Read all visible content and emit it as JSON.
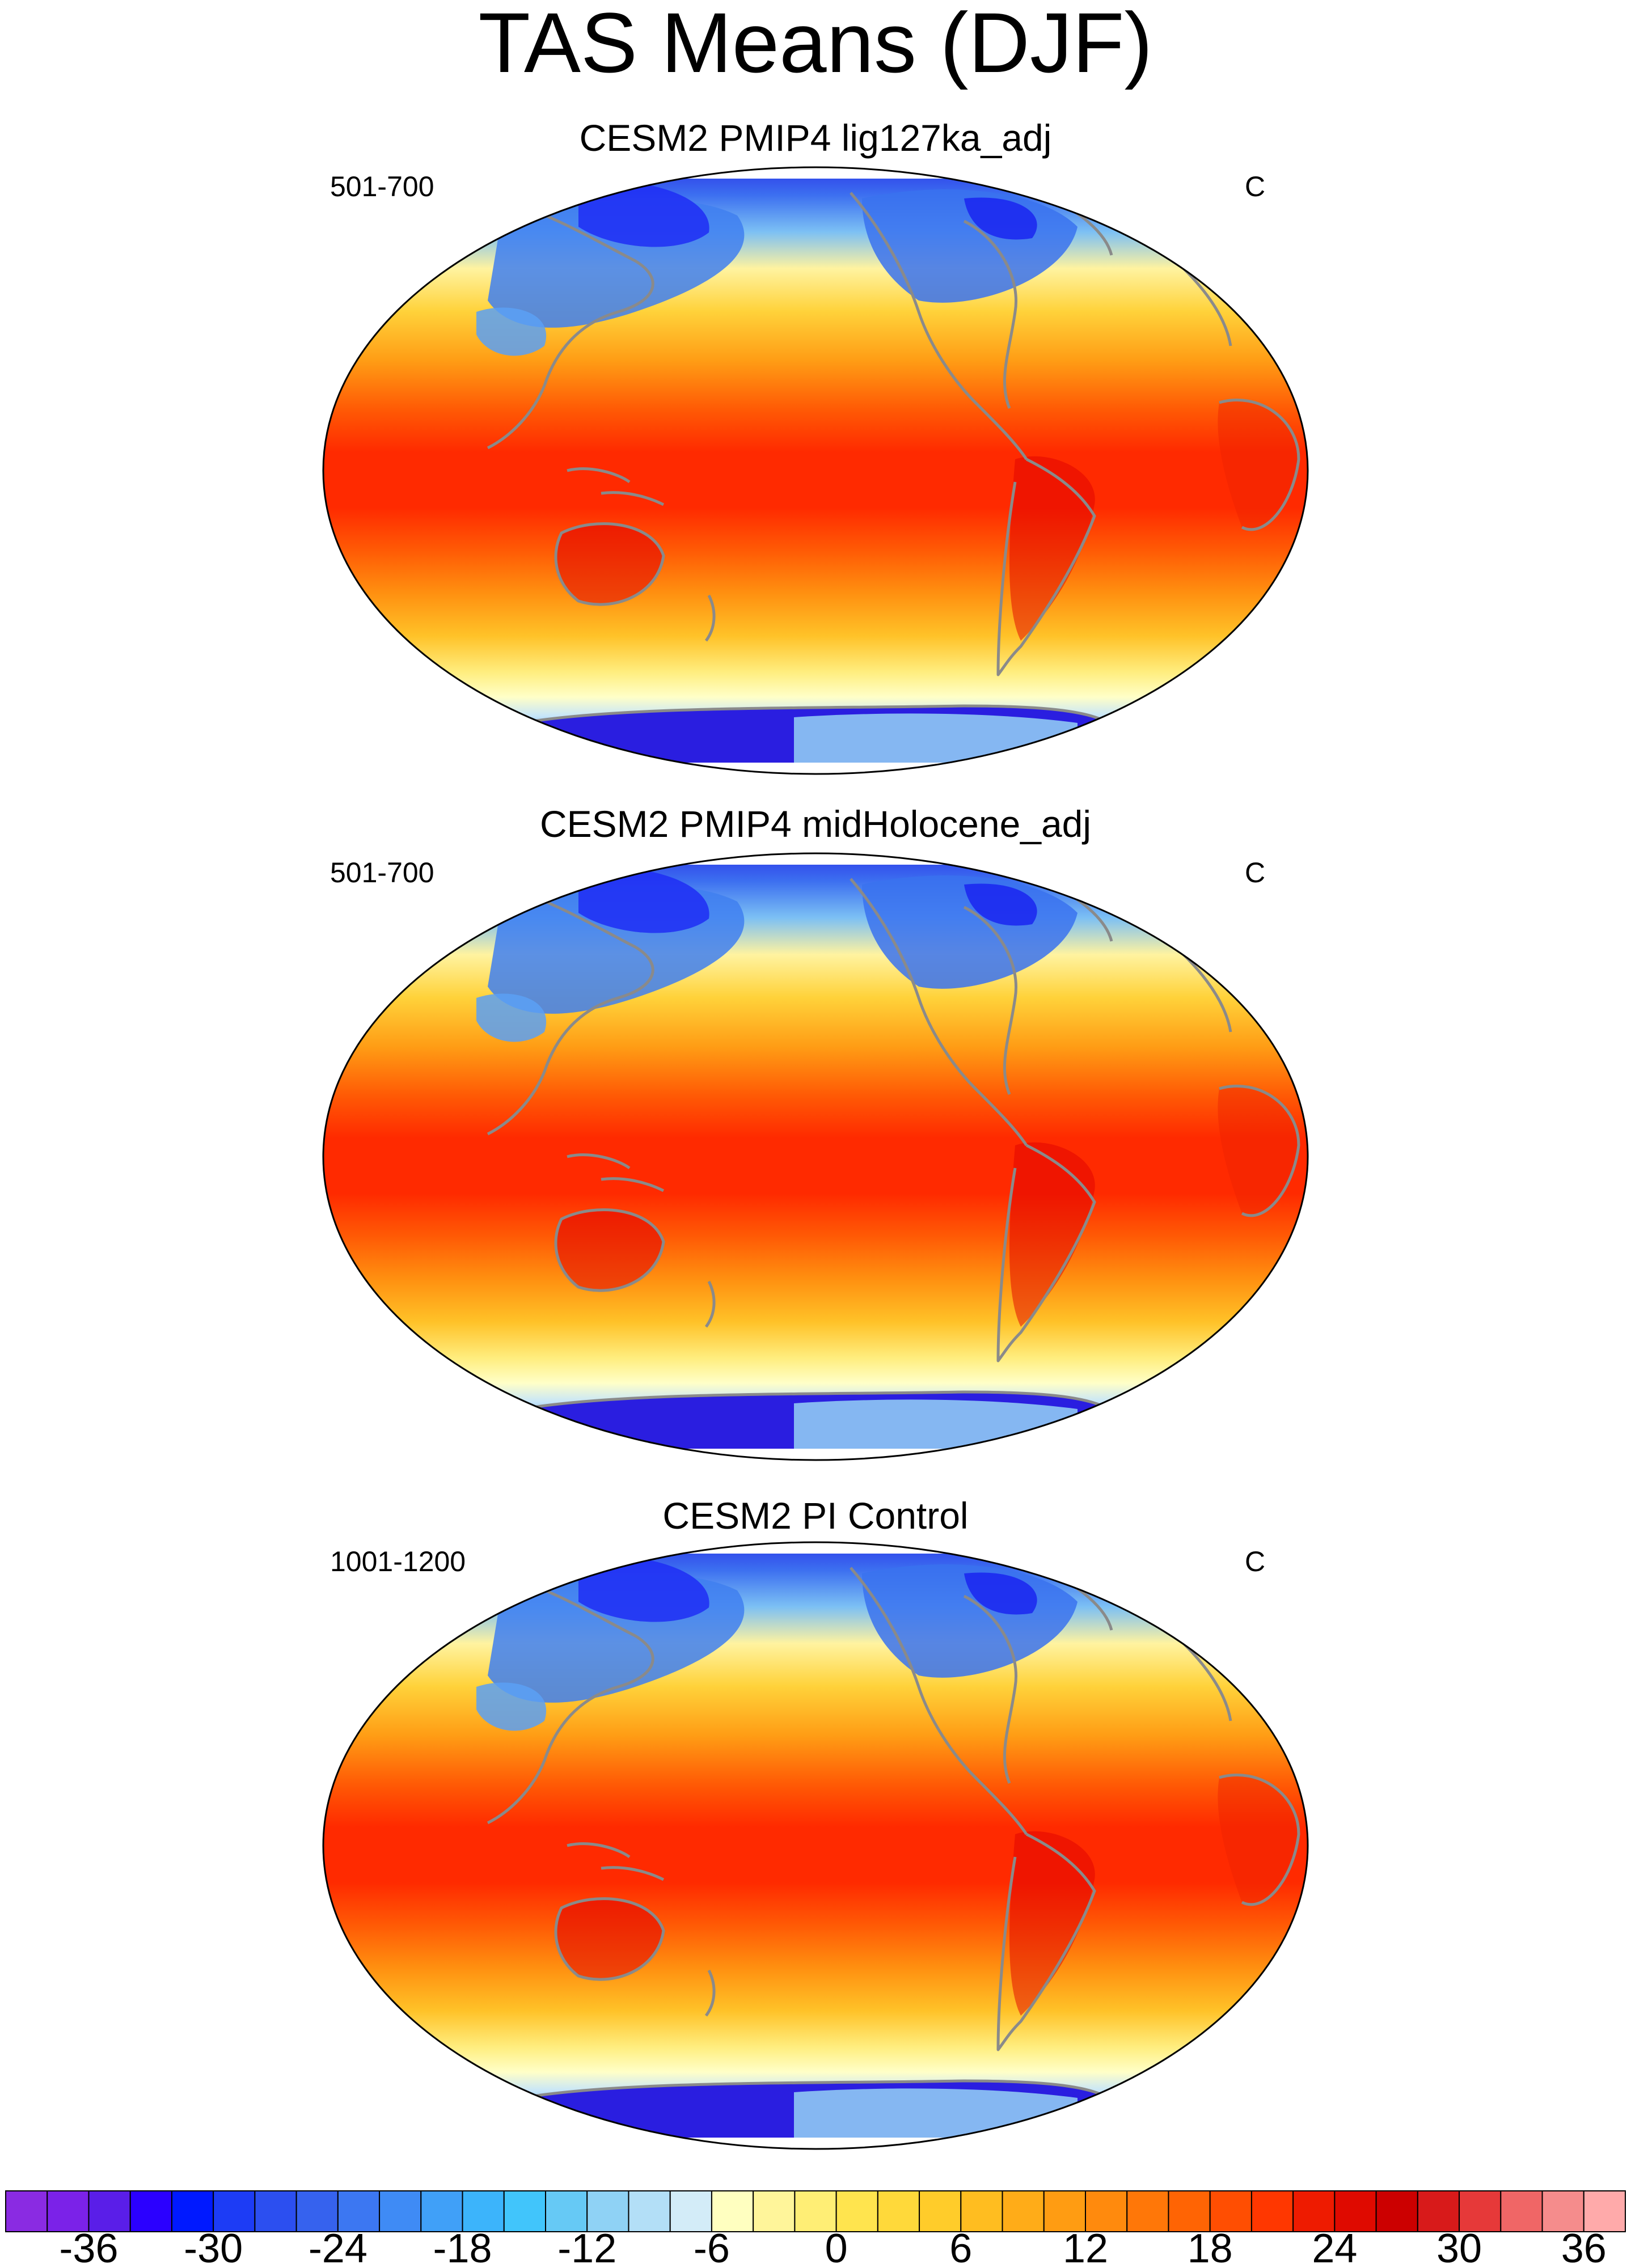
{
  "title": "TAS Means (DJF)",
  "panels": [
    {
      "title": "CESM2 PMIP4 lig127ka_adj",
      "left_label": "501-700",
      "right_label": "C"
    },
    {
      "title": "CESM2 PMIP4 midHolocene_adj",
      "left_label": "501-700",
      "right_label": "C"
    },
    {
      "title": "CESM2 PI Control",
      "left_label": "1001-1200",
      "right_label": "C"
    }
  ],
  "colorbar": {
    "tick_labels": [
      "-36",
      "-30",
      "-24",
      "-18",
      "-12",
      "-6",
      "0",
      "6",
      "12",
      "18",
      "24",
      "30",
      "36"
    ],
    "colors": [
      "#8a2be2",
      "#7b22e8",
      "#5a1ee8",
      "#2b00ff",
      "#0019ff",
      "#1d3cf5",
      "#2c4ff0",
      "#3662ee",
      "#3c77f2",
      "#3f8bf5",
      "#40a0f8",
      "#3cb4fb",
      "#41c5fb",
      "#66c9f5",
      "#8fd2f5",
      "#b3dff7",
      "#d3ecf8",
      "#ffffc0",
      "#fff59a",
      "#ffee75",
      "#ffe44e",
      "#ffd93a",
      "#ffcc2a",
      "#ffbd20",
      "#ffac18",
      "#ff9c12",
      "#ff8a0d",
      "#ff7708",
      "#ff6404",
      "#ff4e02",
      "#ff3700",
      "#ee1b00",
      "#df0a00",
      "#cc0000",
      "#d81a1a",
      "#e63939",
      "#f06666",
      "#f58c8c",
      "#ffaaaa"
    ]
  }
}
